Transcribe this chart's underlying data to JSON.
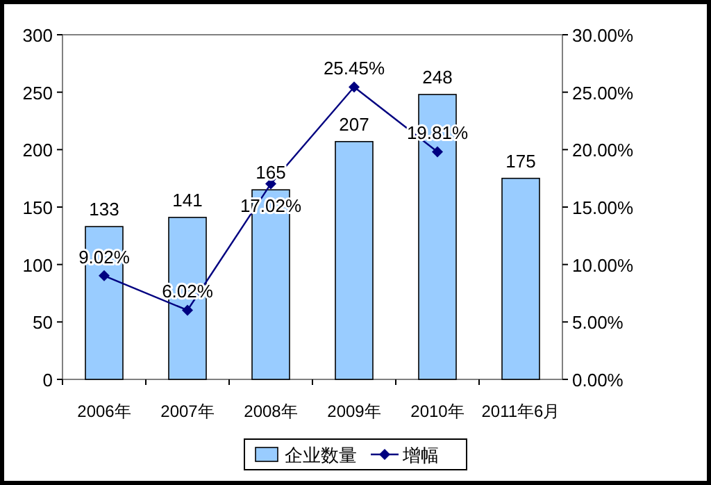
{
  "chart_data": {
    "type": "bar",
    "categories": [
      "2006年",
      "2007年",
      "2008年",
      "2009年",
      "2010年",
      "2011年6月"
    ],
    "series": [
      {
        "name": "企业数量",
        "color": "#99ccff",
        "values": [
          133,
          141,
          165,
          207,
          248,
          175
        ],
        "value_labels": [
          "133",
          "141",
          "165",
          "207",
          "248",
          "175"
        ]
      },
      {
        "name": "增幅",
        "type": "line",
        "axis": "y2",
        "color": "#000080",
        "values": [
          9.02,
          6.02,
          17.02,
          25.45,
          19.81,
          null
        ],
        "value_labels": [
          "9.02%",
          "6.02%",
          "17.02%",
          "25.45%",
          "19.81%",
          null
        ]
      }
    ],
    "ylim": [
      0,
      300
    ],
    "yticks": [
      0,
      50,
      100,
      150,
      200,
      250,
      300
    ],
    "y2lim": [
      0,
      30
    ],
    "y2ticks": [
      {
        "value": 0,
        "label": "0.00%"
      },
      {
        "value": 5,
        "label": "5.00%"
      },
      {
        "value": 10,
        "label": "10.00%"
      },
      {
        "value": 15,
        "label": "15.00%"
      },
      {
        "value": 20,
        "label": "20.00%"
      },
      {
        "value": 25,
        "label": "25.00%"
      },
      {
        "value": 30,
        "label": "30.00%"
      }
    ],
    "legend": "bottom",
    "marker": "diamond"
  }
}
